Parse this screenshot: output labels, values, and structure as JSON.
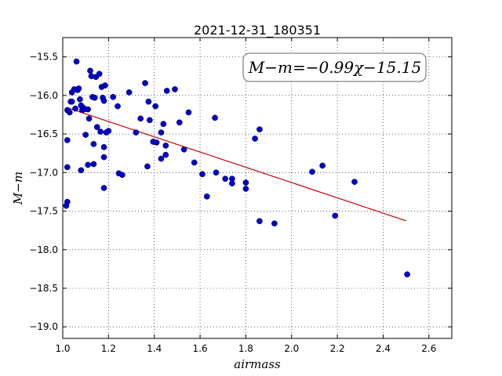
{
  "chart_data": {
    "type": "scatter",
    "title": "2021-12-31_180351",
    "xlabel": "airmass",
    "ylabel": "M−m",
    "xlim": [
      1.0,
      2.7
    ],
    "ylim": [
      -19.15,
      -15.25
    ],
    "y_inverted": true,
    "grid": true,
    "x_ticks": [
      1.0,
      1.2,
      1.4,
      1.6,
      1.8,
      2.0,
      2.2,
      2.4,
      2.6
    ],
    "x_tick_labels": [
      "1.0",
      "1.2",
      "1.4",
      "1.6",
      "1.8",
      "2.0",
      "2.2",
      "2.4",
      "2.6"
    ],
    "y_ticks": [
      -15.5,
      -16.0,
      -16.5,
      -17.0,
      -17.5,
      -18.0,
      -18.5,
      -19.0
    ],
    "y_tick_labels": [
      "−15.5",
      "−16.0",
      "−16.5",
      "−17.0",
      "−17.5",
      "−18.0",
      "−18.5",
      "−19.0"
    ],
    "annotation": "M−m=−0.99χ−15.15",
    "annotation_placement": "top-right",
    "point_color": "#0000cc",
    "fit_color": "#cc0000",
    "fit_line": {
      "slope": -0.99,
      "intercept": -15.15,
      "x_range": [
        1.02,
        2.5
      ]
    },
    "points": [
      [
        1.02,
        -16.19
      ],
      [
        1.02,
        -16.58
      ],
      [
        1.02,
        -16.93
      ],
      [
        1.02,
        -17.38
      ],
      [
        1.015,
        -17.43
      ],
      [
        1.03,
        -16.22
      ],
      [
        1.035,
        -16.08
      ],
      [
        1.04,
        -15.96
      ],
      [
        1.04,
        -16.08
      ],
      [
        1.05,
        -15.92
      ],
      [
        1.055,
        -16.17
      ],
      [
        1.06,
        -15.56
      ],
      [
        1.065,
        -15.93
      ],
      [
        1.07,
        -15.91
      ],
      [
        1.075,
        -16.05
      ],
      [
        1.08,
        -16.13
      ],
      [
        1.085,
        -16.19
      ],
      [
        1.09,
        -16.16
      ],
      [
        1.08,
        -16.97
      ],
      [
        1.095,
        -16.18
      ],
      [
        1.1,
        -16.51
      ],
      [
        1.11,
        -16.18
      ],
      [
        1.115,
        -16.3
      ],
      [
        1.11,
        -16.9
      ],
      [
        1.12,
        -15.68
      ],
      [
        1.125,
        -15.75
      ],
      [
        1.13,
        -16.02
      ],
      [
        1.14,
        -16.03
      ],
      [
        1.135,
        -16.63
      ],
      [
        1.135,
        -16.89
      ],
      [
        1.145,
        -15.76
      ],
      [
        1.15,
        -16.41
      ],
      [
        1.16,
        -15.72
      ],
      [
        1.165,
        -16.47
      ],
      [
        1.17,
        -15.89
      ],
      [
        1.175,
        -16.03
      ],
      [
        1.18,
        -16.07
      ],
      [
        1.18,
        -16.67
      ],
      [
        1.18,
        -16.8
      ],
      [
        1.18,
        -17.2
      ],
      [
        1.185,
        -15.87
      ],
      [
        1.19,
        -16.48
      ],
      [
        1.2,
        -16.46
      ],
      [
        1.22,
        -16.02
      ],
      [
        1.24,
        -16.14
      ],
      [
        1.245,
        -17.01
      ],
      [
        1.26,
        -17.03
      ],
      [
        1.29,
        -15.96
      ],
      [
        1.32,
        -16.48
      ],
      [
        1.34,
        -16.3
      ],
      [
        1.36,
        -15.84
      ],
      [
        1.37,
        -16.92
      ],
      [
        1.375,
        -16.08
      ],
      [
        1.38,
        -16.32
      ],
      [
        1.395,
        -16.6
      ],
      [
        1.405,
        -16.14
      ],
      [
        1.41,
        -16.61
      ],
      [
        1.43,
        -16.48
      ],
      [
        1.43,
        -16.82
      ],
      [
        1.44,
        -16.37
      ],
      [
        1.45,
        -16.65
      ],
      [
        1.45,
        -16.77
      ],
      [
        1.455,
        -15.94
      ],
      [
        1.49,
        -15.92
      ],
      [
        1.51,
        -16.35
      ],
      [
        1.53,
        -16.7
      ],
      [
        1.55,
        -16.22
      ],
      [
        1.575,
        -16.87
      ],
      [
        1.61,
        -17.02
      ],
      [
        1.63,
        -17.31
      ],
      [
        1.665,
        -16.29
      ],
      [
        1.67,
        -17.0
      ],
      [
        1.71,
        -17.08
      ],
      [
        1.74,
        -17.08
      ],
      [
        1.74,
        -17.14
      ],
      [
        1.8,
        -17.13
      ],
      [
        1.8,
        -17.21
      ],
      [
        1.84,
        -16.56
      ],
      [
        1.86,
        -16.44
      ],
      [
        1.86,
        -17.63
      ],
      [
        1.925,
        -17.66
      ],
      [
        2.09,
        -16.99
      ],
      [
        2.135,
        -16.91
      ],
      [
        2.19,
        -17.56
      ],
      [
        2.275,
        -17.12
      ],
      [
        2.505,
        -18.32
      ]
    ]
  }
}
